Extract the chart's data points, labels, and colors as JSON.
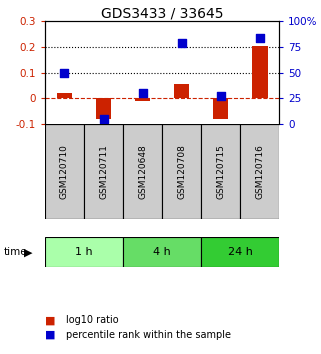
{
  "title": "GDS3433 / 33645",
  "samples": [
    "GSM120710",
    "GSM120711",
    "GSM120648",
    "GSM120708",
    "GSM120715",
    "GSM120716"
  ],
  "log10_ratio": [
    0.02,
    -0.08,
    -0.01,
    0.055,
    -0.08,
    0.205
  ],
  "percentile_rank": [
    50,
    5,
    30,
    79,
    27,
    84
  ],
  "groups": [
    {
      "label": "1 h",
      "indices": [
        0,
        1
      ],
      "color": "#aaffaa"
    },
    {
      "label": "4 h",
      "indices": [
        2,
        3
      ],
      "color": "#66dd66"
    },
    {
      "label": "24 h",
      "indices": [
        4,
        5
      ],
      "color": "#33cc33"
    }
  ],
  "ylim_left": [
    -0.1,
    0.3
  ],
  "ylim_right": [
    0,
    100
  ],
  "yticks_left": [
    -0.1,
    0.0,
    0.1,
    0.2,
    0.3
  ],
  "yticks_right": [
    0,
    25,
    50,
    75,
    100
  ],
  "yticklabels_left": [
    "-0.1",
    "0",
    "0.1",
    "0.2",
    "0.3"
  ],
  "yticklabels_right": [
    "0",
    "25",
    "50",
    "75",
    "100%"
  ],
  "hlines_dotted": [
    0.1,
    0.2
  ],
  "hline_dashed": 0.0,
  "bar_color": "#cc2200",
  "dot_color": "#0000cc",
  "bar_width": 0.4,
  "dot_size": 32,
  "label_log10": "log10 ratio",
  "label_percentile": "percentile rank within the sample",
  "sample_box_color": "#cccccc",
  "time_label": "time",
  "title_fontsize": 10,
  "tick_fontsize": 7.5,
  "legend_fontsize": 7,
  "sample_fontsize": 6.5
}
